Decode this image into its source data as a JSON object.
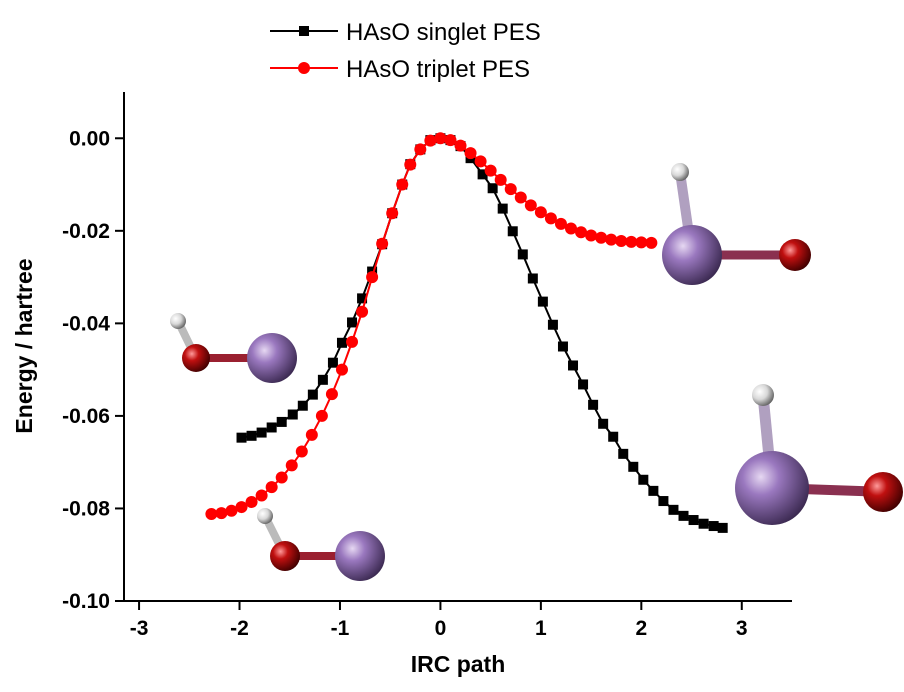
{
  "chart_data": {
    "type": "line",
    "xlabel": "IRC path",
    "ylabel": "Energy  /  hartree",
    "xlim": [
      -3.15,
      3.5
    ],
    "ylim": [
      -0.1,
      0.01
    ],
    "xticks": [
      -3,
      -2,
      -1,
      0,
      1,
      2,
      3
    ],
    "yticks": [
      {
        "value": 0,
        "label": "0.00"
      },
      {
        "value": -0.02,
        "label": "-0.02"
      },
      {
        "value": -0.04,
        "label": "-0.04"
      },
      {
        "value": -0.06,
        "label": "-0.06"
      },
      {
        "value": -0.08,
        "label": "-0.08"
      },
      {
        "value": -0.1,
        "label": "-0.10"
      }
    ],
    "series": [
      {
        "name": "HAsO singlet PES",
        "color": "#000000",
        "marker": "square",
        "x": [
          -1.98,
          -1.88,
          -1.78,
          -1.68,
          -1.58,
          -1.47,
          -1.37,
          -1.27,
          -1.17,
          -1.07,
          -0.98,
          -0.88,
          -0.78,
          -0.68,
          -0.58,
          -0.48,
          -0.38,
          -0.3,
          -0.2,
          -0.1,
          0,
          0.1,
          0.2,
          0.3,
          0.42,
          0.52,
          0.62,
          0.72,
          0.82,
          0.92,
          1.02,
          1.12,
          1.22,
          1.32,
          1.42,
          1.52,
          1.62,
          1.72,
          1.82,
          1.92,
          2.02,
          2.12,
          2.22,
          2.32,
          2.42,
          2.52,
          2.62,
          2.72,
          2.81
        ],
        "values": [
          -0.0647,
          -0.0643,
          -0.0636,
          -0.0625,
          -0.0613,
          -0.0597,
          -0.0578,
          -0.0554,
          -0.0522,
          -0.0485,
          -0.0442,
          -0.0398,
          -0.0346,
          -0.0288,
          -0.0229,
          -0.0162,
          -0.01,
          -0.0056,
          -0.0024,
          -0.0004,
          0,
          -0.0004,
          -0.0017,
          -0.0043,
          -0.0078,
          -0.0108,
          -0.0152,
          -0.0201,
          -0.0251,
          -0.0303,
          -0.0353,
          -0.0403,
          -0.045,
          -0.0491,
          -0.0532,
          -0.0576,
          -0.0617,
          -0.0645,
          -0.0682,
          -0.071,
          -0.0738,
          -0.0762,
          -0.0784,
          -0.0803,
          -0.0816,
          -0.0825,
          -0.0833,
          -0.0838,
          -0.0842
        ]
      },
      {
        "name": "HAsO triplet PES",
        "color": "#ff0000",
        "marker": "circle",
        "x": [
          -2.28,
          -2.18,
          -2.08,
          -1.98,
          -1.88,
          -1.78,
          -1.68,
          -1.58,
          -1.48,
          -1.38,
          -1.28,
          -1.18,
          -1.08,
          -0.98,
          -0.88,
          -0.78,
          -0.68,
          -0.58,
          -0.48,
          -0.38,
          -0.3,
          -0.2,
          -0.1,
          0,
          0.1,
          0.2,
          0.3,
          0.4,
          0.5,
          0.6,
          0.7,
          0.8,
          0.9,
          1.0,
          1.1,
          1.2,
          1.3,
          1.4,
          1.5,
          1.6,
          1.7,
          1.8,
          1.9,
          2.0,
          2.1
        ],
        "values": [
          -0.0812,
          -0.081,
          -0.0805,
          -0.0797,
          -0.0786,
          -0.0772,
          -0.0754,
          -0.0733,
          -0.0707,
          -0.0677,
          -0.0641,
          -0.06,
          -0.0553,
          -0.05,
          -0.044,
          -0.0375,
          -0.03,
          -0.0228,
          -0.0162,
          -0.01,
          -0.0057,
          -0.0024,
          -0.0005,
          0,
          -0.0004,
          -0.0016,
          -0.0032,
          -0.005,
          -0.007,
          -0.009,
          -0.011,
          -0.0128,
          -0.0145,
          -0.016,
          -0.0173,
          -0.0185,
          -0.0195,
          -0.0203,
          -0.021,
          -0.0215,
          -0.0219,
          -0.0222,
          -0.0224,
          -0.0225,
          -0.0226
        ]
      }
    ]
  }
}
